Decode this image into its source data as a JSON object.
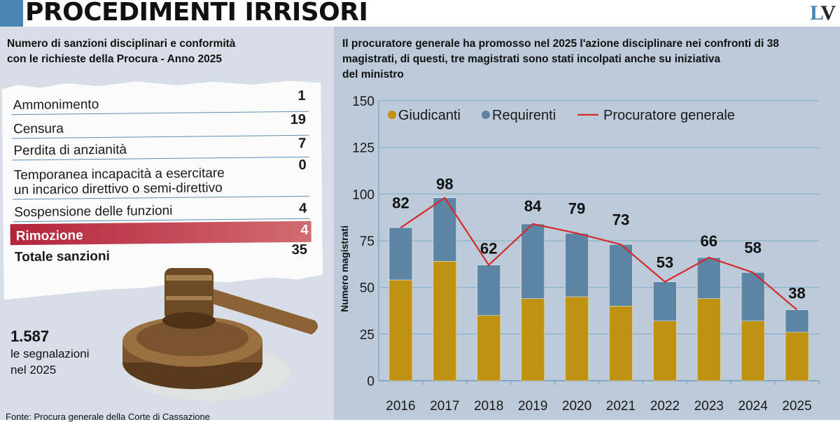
{
  "header": {
    "title": "PROCEDIMENTI IRRISORI",
    "logo_l": "L",
    "logo_v": "V",
    "accent_color": "#4a86b3"
  },
  "left_panel": {
    "subtitle_line1": "Numero di sanzioni disciplinari e conformità",
    "subtitle_line2": "con le richieste della Procura - Anno 2025",
    "table": [
      {
        "label": "Ammonimento",
        "value": "1"
      },
      {
        "label": "Censura",
        "value": "19"
      },
      {
        "label": "Perdita di anzianità",
        "value": "7"
      },
      {
        "label": "Temporanea incapacità a esercitare",
        "label2": "un incarico direttivo o semi-direttivo",
        "value": "0"
      },
      {
        "label": "Sospensione delle funzioni",
        "value": "4"
      },
      {
        "label": "Rimozione",
        "value": "4"
      },
      {
        "label": "Totale sanzioni",
        "value": "35"
      }
    ],
    "stat_number": "1.587",
    "stat_line1": "le segnalazioni",
    "stat_line2": "nel 2025",
    "source": "Fonte: Procura generale della Corte di Cassazione",
    "highlight_color": "#b3243a"
  },
  "right_panel": {
    "subtitle_line1": "Il procuratore generale ha promosso nel 2025 l'azione disciplinare nei confronti di 38",
    "subtitle_line2": "magistrati, di questi, tre magistrati sono stati incolpati anche su iniziativa",
    "subtitle_line3": "del ministro"
  },
  "chart_data": {
    "type": "bar",
    "stacked": true,
    "title": "Il procuratore generale ha promosso nel 2025 l'azione disciplinare nei confronti di 38 magistrati, di questi, tre magistrati sono stati incolpati anche su iniziativa del ministro",
    "xlabel": "",
    "ylabel": "Numero magistrati",
    "ylim": [
      0,
      150
    ],
    "yticks": [
      0,
      25,
      50,
      75,
      100,
      125,
      150
    ],
    "grid": true,
    "legend_position": "top",
    "categories": [
      "2016",
      "2017",
      "2018",
      "2019",
      "2020",
      "2021",
      "2022",
      "2023",
      "2024",
      "2025"
    ],
    "series": [
      {
        "name": "Giudicanti",
        "type": "bar",
        "color": "#c09212",
        "values": [
          54,
          64,
          35,
          44,
          45,
          40,
          32,
          44,
          32,
          26
        ]
      },
      {
        "name": "Requirenti",
        "type": "bar",
        "color": "#5d84a2",
        "values": [
          28,
          34,
          27,
          40,
          34,
          33,
          21,
          22,
          26,
          12
        ]
      },
      {
        "name": "Procuratore generale",
        "type": "line",
        "color": "#d42a2a",
        "values": [
          82,
          98,
          62,
          84,
          79,
          73,
          53,
          66,
          58,
          38
        ]
      }
    ],
    "data_labels": [
      "82",
      "98",
      "62",
      "84",
      "79",
      "73",
      "53",
      "66",
      "58",
      "38"
    ]
  }
}
